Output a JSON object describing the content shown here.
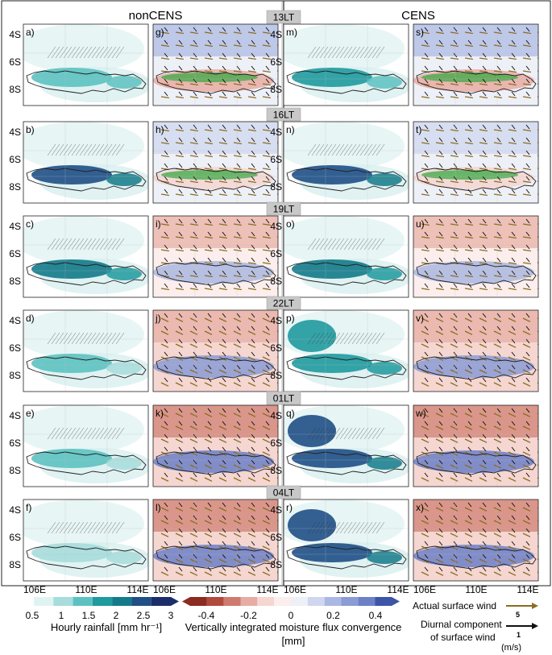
{
  "figure": {
    "col_headers": [
      "nonCENS",
      "CENS"
    ],
    "row_times": [
      "13LT",
      "16LT",
      "19LT",
      "22LT",
      "01LT",
      "04LT"
    ],
    "panel_letters": [
      [
        "a)",
        "g)",
        "m)",
        "s)"
      ],
      [
        "b)",
        "h)",
        "n)",
        "t)"
      ],
      [
        "c)",
        "i)",
        "o)",
        "u)"
      ],
      [
        "d)",
        "j)",
        "p)",
        "v)"
      ],
      [
        "e)",
        "k)",
        "q)",
        "w)"
      ],
      [
        "f)",
        "l)",
        "r)",
        "x)"
      ]
    ],
    "lat_labels": [
      "4S",
      "6S",
      "8S"
    ],
    "lon_labels": [
      "106E",
      "110E",
      "114E"
    ]
  },
  "chart_data": {
    "type": "heatmap",
    "rainfall_cmap": [
      "#e0f3f3",
      "#a6dddc",
      "#5cc2c1",
      "#1f9a9e",
      "#137a8a",
      "#1f4f86",
      "#1c2e6a"
    ],
    "convergence_cmap": [
      "#8b2b22",
      "#b04a3d",
      "#cf7a6e",
      "#e7aca3",
      "#f5d6d1",
      "#fbeeec",
      "#eef0f8",
      "#cfd6ee",
      "#aab7e2",
      "#8a9bd6",
      "#6c80c8",
      "#3c55a6"
    ],
    "rainfall_intensity": {
      "nonCENS": [
        0.4,
        0.9,
        0.6,
        0.25,
        0.25,
        0.2
      ],
      "CENS": [
        0.45,
        0.85,
        0.65,
        0.55,
        0.8,
        0.75
      ]
    },
    "convergence_sign": [
      0.6,
      0.3,
      -0.5,
      -0.8,
      -0.9,
      -0.9
    ],
    "colorbars": [
      {
        "label": "Hourly rainfall [mm hr⁻¹]",
        "ticks": [
          "0.5",
          "1",
          "1.5",
          "2",
          "2.5",
          "3"
        ]
      },
      {
        "label": "Vertically integrated moisture flux convergence",
        "unit": "[mm]",
        "ticks": [
          "-0.4",
          "-0.2",
          "0",
          "0.2",
          "0.4"
        ]
      }
    ],
    "wind_legend": {
      "actual_label": "Actual surface wind",
      "actual_value": "5",
      "actual_color": "#8a6d1e",
      "diurnal_label_1": "Diurnal component",
      "diurnal_label_2": "of surface wind",
      "diurnal_value": "1",
      "diurnal_color": "#111111",
      "unit": "(m/s)"
    }
  }
}
